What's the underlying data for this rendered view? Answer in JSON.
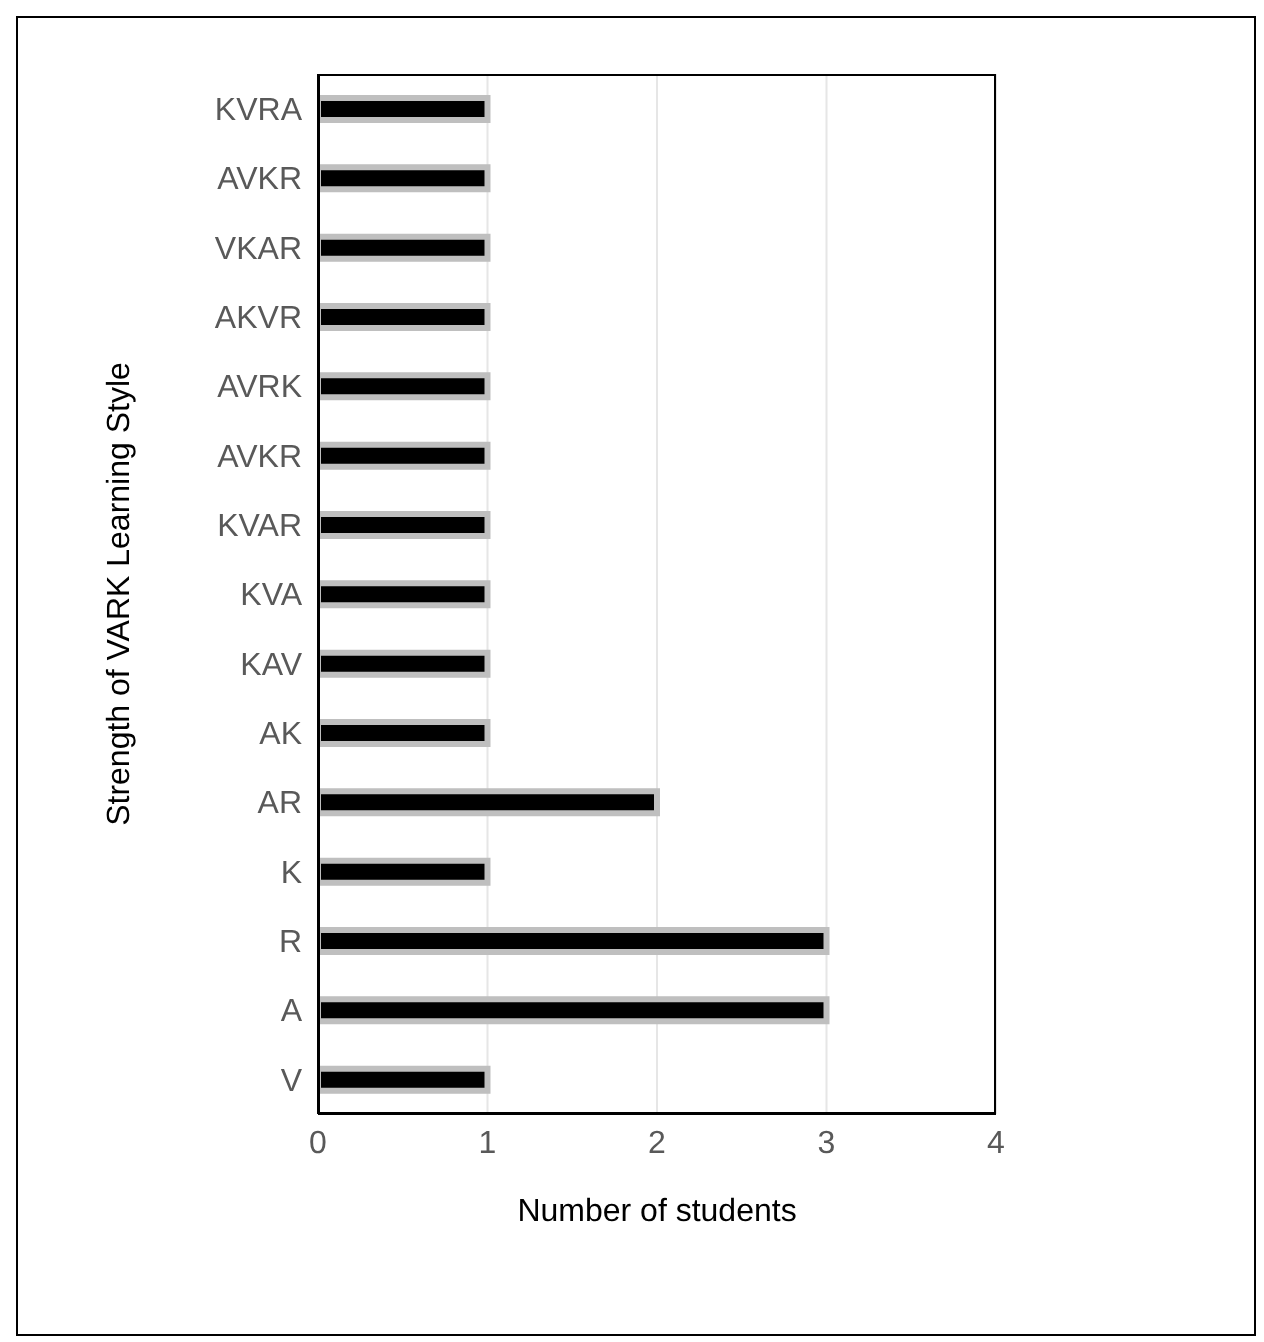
{
  "chart_data": {
    "type": "bar",
    "orientation": "horizontal",
    "xlabel": "Number of students",
    "ylabel": "Strength of VARK Learning Style",
    "categories": [
      "KVRA",
      "AVKR",
      "VKAR",
      "AKVR",
      "AVRK",
      "AVKR",
      "KVAR",
      "KVA",
      "KAV",
      "AK",
      "AR",
      "K",
      "R",
      "A",
      "V"
    ],
    "values": [
      1,
      1,
      1,
      1,
      1,
      1,
      1,
      1,
      1,
      1,
      2,
      1,
      3,
      3,
      1
    ],
    "color": "#000000",
    "xlim": [
      0,
      4
    ],
    "xticks": [
      0,
      1,
      2,
      3,
      4
    ],
    "grid": "x"
  }
}
